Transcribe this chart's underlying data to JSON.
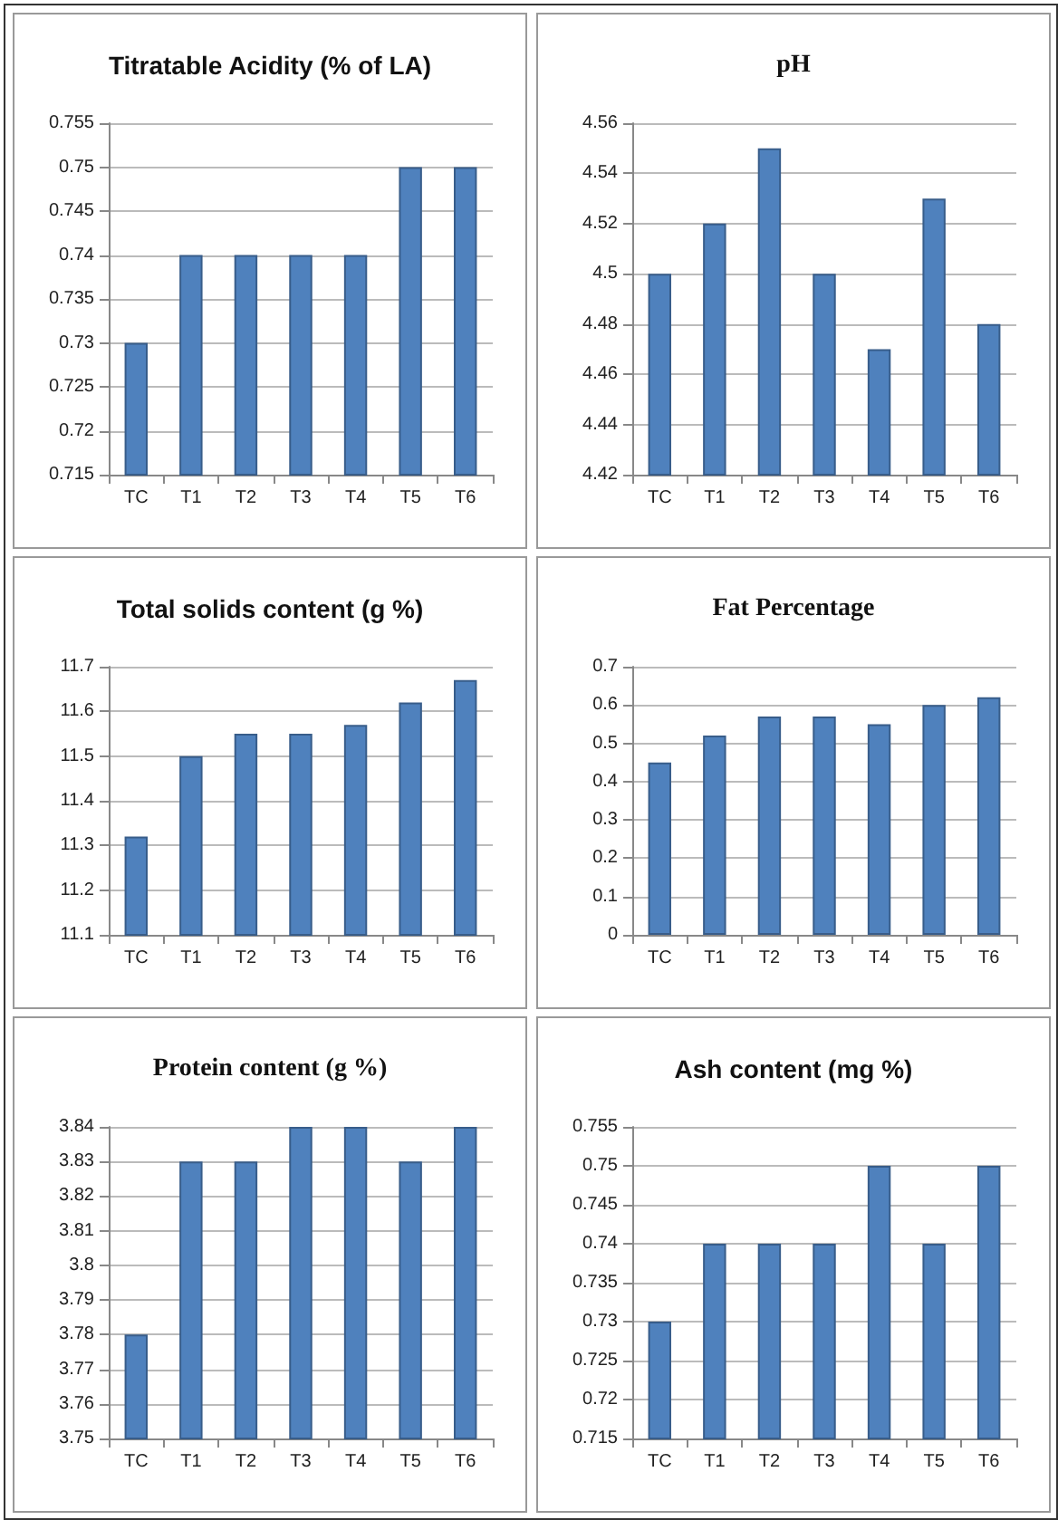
{
  "chart_data": [
    {
      "type": "bar",
      "title": "Titratable Acidity (% of LA)",
      "categories": [
        "TC",
        "T1",
        "T2",
        "T3",
        "T4",
        "T5",
        "T6"
      ],
      "values": [
        0.73,
        0.74,
        0.74,
        0.74,
        0.74,
        0.75,
        0.75
      ],
      "color": "#4f81bd",
      "ylim": [
        0.715,
        0.755
      ],
      "yticks": [
        0.715,
        0.72,
        0.725,
        0.73,
        0.735,
        0.74,
        0.745,
        0.75,
        0.755
      ],
      "grid": "y"
    },
    {
      "type": "bar",
      "title": "pH",
      "categories": [
        "TC",
        "T1",
        "T2",
        "T3",
        "T4",
        "T5",
        "T6"
      ],
      "values": [
        4.5,
        4.52,
        4.55,
        4.5,
        4.47,
        4.53,
        4.48
      ],
      "color": "#4f81bd",
      "ylim": [
        4.42,
        4.56
      ],
      "yticks": [
        4.42,
        4.44,
        4.46,
        4.48,
        4.5,
        4.52,
        4.54,
        4.56
      ],
      "grid": "y"
    },
    {
      "type": "bar",
      "title": "Total solids content (g %)",
      "categories": [
        "TC",
        "T1",
        "T2",
        "T3",
        "T4",
        "T5",
        "T6"
      ],
      "values": [
        11.32,
        11.5,
        11.55,
        11.55,
        11.57,
        11.62,
        11.67
      ],
      "color": "#4f81bd",
      "ylim": [
        11.1,
        11.7
      ],
      "yticks": [
        11.1,
        11.2,
        11.3,
        11.4,
        11.5,
        11.6,
        11.7
      ],
      "grid": "y"
    },
    {
      "type": "bar",
      "title": "Fat Percentage",
      "categories": [
        "TC",
        "T1",
        "T2",
        "T3",
        "T4",
        "T5",
        "T6"
      ],
      "values": [
        0.45,
        0.52,
        0.57,
        0.57,
        0.55,
        0.6,
        0.62
      ],
      "color": "#4f81bd",
      "ylim": [
        0,
        0.7
      ],
      "yticks": [
        0,
        0.1,
        0.2,
        0.3,
        0.4,
        0.5,
        0.6,
        0.7
      ],
      "grid": "y"
    },
    {
      "type": "bar",
      "title": "Protein content (g %)",
      "categories": [
        "TC",
        "T1",
        "T2",
        "T3",
        "T4",
        "T5",
        "T6"
      ],
      "values": [
        3.78,
        3.83,
        3.83,
        3.84,
        3.84,
        3.83,
        3.84
      ],
      "color": "#4f81bd",
      "ylim": [
        3.75,
        3.84
      ],
      "yticks": [
        3.75,
        3.76,
        3.77,
        3.78,
        3.79,
        3.8,
        3.81,
        3.82,
        3.83,
        3.84
      ],
      "grid": "y"
    },
    {
      "type": "bar",
      "title": "Ash content (mg %)",
      "categories": [
        "TC",
        "T1",
        "T2",
        "T3",
        "T4",
        "T5",
        "T6"
      ],
      "values": [
        0.73,
        0.74,
        0.74,
        0.74,
        0.75,
        0.74,
        0.75
      ],
      "color": "#4f81bd",
      "ylim": [
        0.715,
        0.755
      ],
      "yticks": [
        0.715,
        0.72,
        0.725,
        0.73,
        0.735,
        0.74,
        0.745,
        0.75,
        0.755
      ],
      "grid": "y"
    }
  ]
}
